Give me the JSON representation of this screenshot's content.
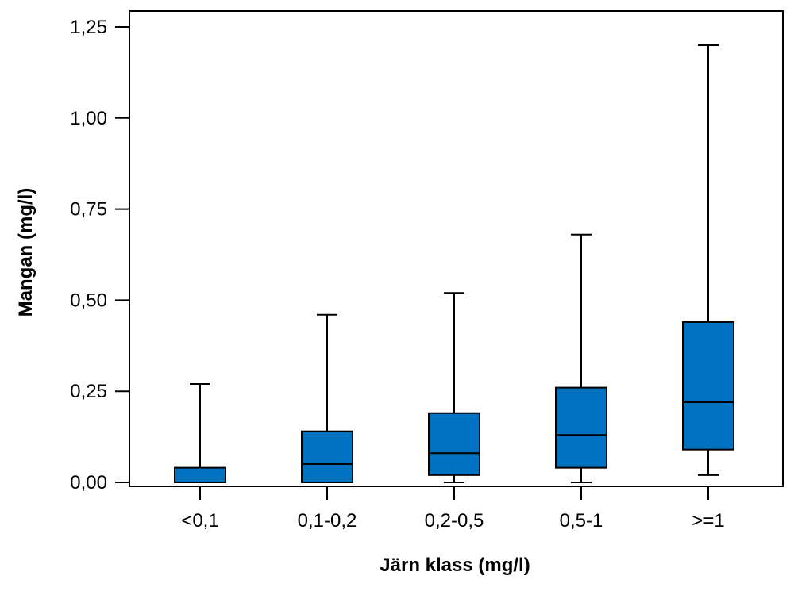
{
  "chart_data": {
    "type": "boxplot",
    "xlabel": "Järn klass (mg/l)",
    "ylabel": "Mangan (mg/l)",
    "ylim": [
      0,
      1.25
    ],
    "yticks": [
      {
        "value": 0,
        "label": "0,00"
      },
      {
        "value": 0.25,
        "label": "0,25"
      },
      {
        "value": 0.5,
        "label": "0,50"
      },
      {
        "value": 0.75,
        "label": "0,75"
      },
      {
        "value": 1.0,
        "label": "1,00"
      },
      {
        "value": 1.25,
        "label": "1,25"
      }
    ],
    "categories": [
      "<0,1",
      "0,1-0,2",
      "0,2-0,5",
      "0,5-1",
      ">=1"
    ],
    "boxes": [
      {
        "min": 0.0,
        "q1": 0.0,
        "median": 0.0,
        "q3": 0.04,
        "max": 0.27
      },
      {
        "min": 0.0,
        "q1": 0.0,
        "median": 0.05,
        "q3": 0.14,
        "max": 0.46
      },
      {
        "min": 0.0,
        "q1": 0.02,
        "median": 0.08,
        "q3": 0.19,
        "max": 0.52
      },
      {
        "min": 0.0,
        "q1": 0.04,
        "median": 0.13,
        "q3": 0.26,
        "max": 0.68
      },
      {
        "min": 0.02,
        "q1": 0.09,
        "median": 0.22,
        "q3": 0.44,
        "max": 1.2
      }
    ],
    "box_color": "#0072C0",
    "grid": false,
    "legend": "none"
  }
}
